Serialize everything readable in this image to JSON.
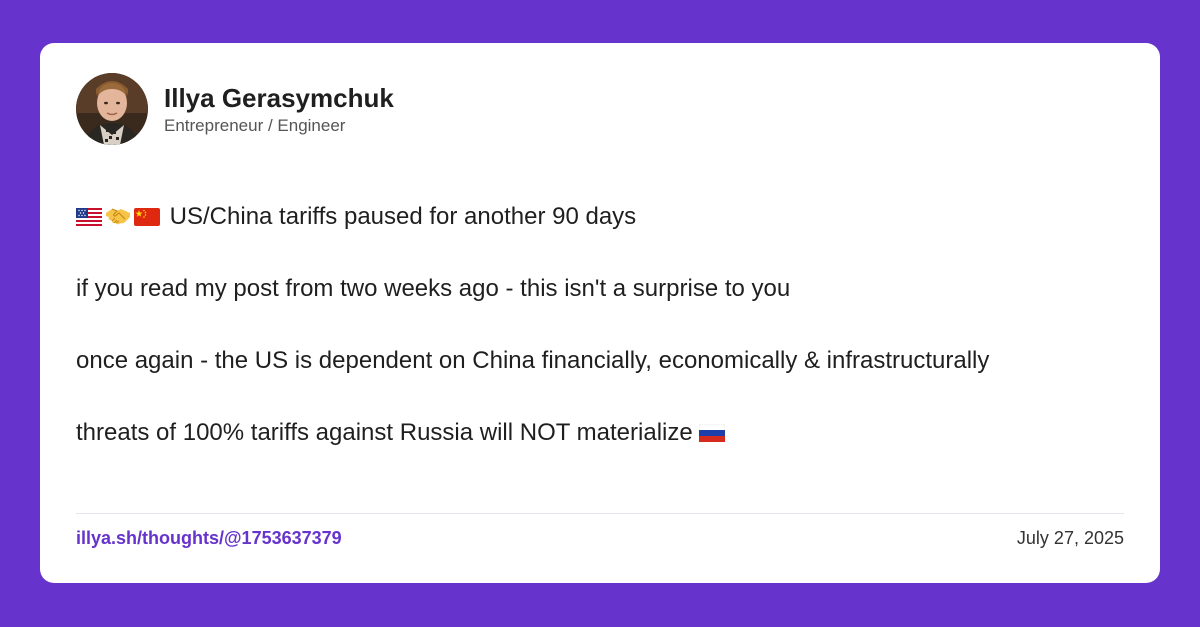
{
  "author": {
    "name": "Illya Gerasymchuk",
    "title": "Entrepreneur / Engineer",
    "avatar_icon": "avatar-photo"
  },
  "post": {
    "line1_icons": [
      "us-flag-icon",
      "handshake-icon",
      "china-flag-icon"
    ],
    "line1_text": "US/China tariffs paused for another 90 days",
    "line2_text": "if you read my post from two weeks ago - this isn't a surprise to you",
    "line3_text": "once again - the US is dependent on China financially, economically & infrastructurally",
    "line4_text": "threats of 100% tariffs against Russia will NOT materialize",
    "line4_icon": "russia-flag-icon"
  },
  "footer": {
    "link_text": "illya.sh/thoughts/@1753637379",
    "date": "July 27, 2025"
  },
  "colors": {
    "background": "#6633cc",
    "card": "#ffffff",
    "link": "#6633cc",
    "text": "#1f1f1f"
  }
}
